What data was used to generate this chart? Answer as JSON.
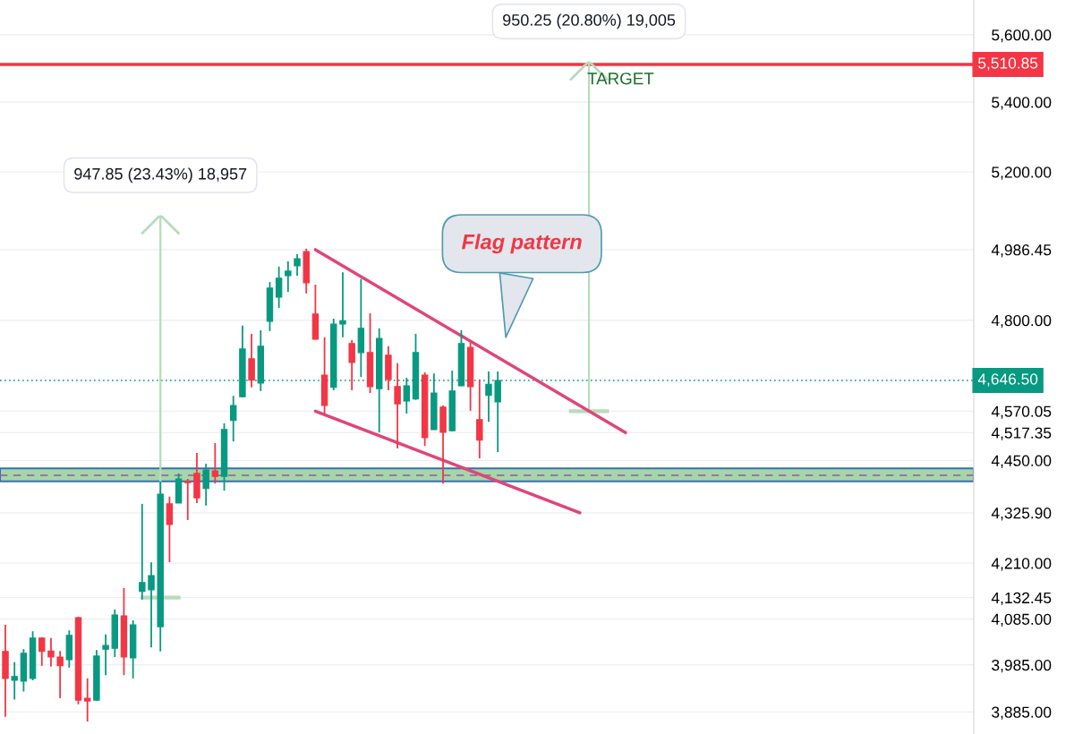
{
  "chart_data": {
    "type": "candlestick",
    "categories": [
      null,
      null,
      null,
      null,
      null,
      null,
      null,
      null,
      null,
      null,
      null,
      null,
      null,
      null,
      null,
      null,
      null,
      null,
      null,
      null,
      null,
      null,
      null,
      null,
      null,
      null,
      null,
      null,
      null,
      null,
      null,
      null,
      null,
      null,
      null,
      null,
      null,
      null,
      null,
      null,
      null,
      null,
      null,
      null,
      null,
      null,
      null,
      null,
      null,
      null,
      null,
      null,
      null,
      null,
      null,
      null,
      null,
      null,
      null,
      null,
      null,
      null,
      null,
      null,
      null,
      null,
      null,
      null,
      null,
      null,
      null,
      null,
      null,
      null,
      null,
      null,
      null,
      null,
      null,
      null,
      null,
      null,
      null,
      null,
      null,
      null,
      null,
      null,
      null,
      null,
      null,
      null,
      null,
      null,
      null,
      null,
      null,
      null,
      null,
      null,
      null,
      null,
      null,
      null,
      null,
      null,
      null
    ],
    "ohlc": [
      [
        4014,
        4072,
        3875,
        3956
      ],
      [
        3952,
        3991,
        3911,
        3960
      ],
      [
        3950,
        4019,
        3928,
        4010
      ],
      [
        3956,
        4058,
        3952,
        4043
      ],
      [
        4043,
        4045,
        3983,
        4014
      ],
      [
        4015,
        4043,
        3981,
        4002
      ],
      [
        4002,
        4015,
        3914,
        3983
      ],
      [
        3996,
        4060,
        3979,
        4049
      ],
      [
        4088,
        4090,
        3901,
        3910
      ],
      [
        3914,
        3956,
        3865,
        3908
      ],
      [
        3910,
        4017,
        3908,
        4004
      ],
      [
        4019,
        4051,
        3963,
        4027
      ],
      [
        4021,
        4106,
        4002,
        4094
      ],
      [
        4092,
        4154,
        3963,
        4002
      ],
      [
        4000,
        4082,
        3956,
        4072
      ],
      [
        4146,
        4347,
        4128,
        4166
      ],
      [
        4150,
        4212,
        4023,
        4182
      ],
      [
        4068,
        4400,
        4014,
        4370
      ],
      [
        4347,
        4364,
        4212,
        4299
      ],
      [
        4349,
        4419,
        4349,
        4406
      ],
      [
        4400,
        4406,
        4309,
        4397
      ],
      [
        4419,
        4468,
        4349,
        4361
      ],
      [
        4383,
        4442,
        4343,
        4427
      ],
      [
        4425,
        4492,
        4395,
        4412
      ],
      [
        4412,
        4540,
        4378,
        4525
      ],
      [
        4547,
        4608,
        4496,
        4584
      ],
      [
        4606,
        4786,
        4604,
        4726
      ],
      [
        4701,
        4765,
        4629,
        4647
      ],
      [
        4640,
        4774,
        4620,
        4733
      ],
      [
        4797,
        4900,
        4772,
        4884
      ],
      [
        4860,
        4941,
        4832,
        4910
      ],
      [
        4917,
        4955,
        4874,
        4929
      ],
      [
        4943,
        4974,
        4917,
        4962
      ],
      [
        4981,
        4989,
        4870,
        4898
      ],
      [
        4816,
        4893,
        4750,
        4751
      ],
      [
        4660,
        4756,
        4564,
        4584
      ],
      [
        4629,
        4804,
        4622,
        4790
      ],
      [
        4790,
        4926,
        4756,
        4799
      ],
      [
        4740,
        4749,
        4622,
        4692
      ],
      [
        4717,
        4908,
        4655,
        4779
      ],
      [
        4717,
        4818,
        4615,
        4631
      ],
      [
        4626,
        4779,
        4518,
        4753
      ],
      [
        4710,
        4733,
        4622,
        4649
      ],
      [
        4631,
        4690,
        4479,
        4588
      ],
      [
        4595,
        4653,
        4564,
        4633
      ],
      [
        4600,
        4765,
        4598,
        4717
      ],
      [
        4660,
        4667,
        4485,
        4505
      ],
      [
        4525,
        4664,
        4524,
        4615
      ],
      [
        4580,
        4584,
        4395,
        4518
      ],
      [
        4522,
        4671,
        4521,
        4620
      ],
      [
        4633,
        4774,
        4632,
        4740
      ],
      [
        4730,
        4742,
        4571,
        4631
      ],
      [
        4549,
        4649,
        4455,
        4499
      ],
      [
        4609,
        4669,
        4544,
        4637
      ],
      [
        4593,
        4669,
        4470,
        4646.5
      ],
      null,
      null,
      null,
      null,
      null,
      null,
      null,
      null,
      null,
      null,
      null,
      null,
      null,
      null,
      null,
      null,
      null,
      null,
      null,
      null,
      null,
      null,
      null,
      null,
      null,
      null,
      null,
      null,
      null,
      null,
      null,
      null,
      null,
      null,
      null,
      null,
      null,
      null,
      null,
      null,
      null,
      null,
      null,
      null,
      null,
      null,
      null,
      null,
      null,
      null,
      null,
      null
    ],
    "colors": [
      "#f23645",
      "#089981",
      "#089981",
      "#089981",
      "#f23645",
      "#f23645",
      "#f23645",
      "#089981",
      "#f23645",
      "#f23645",
      "#089981",
      "#089981",
      "#089981",
      "#f23645",
      "#089981",
      "#089981",
      "#089981",
      "#089981",
      "#f23645",
      "#089981",
      "#f23645",
      "#f23645",
      "#089981",
      "#f23645",
      "#089981",
      "#089981",
      "#089981",
      "#f23645",
      "#089981",
      "#089981",
      "#089981",
      "#089981",
      "#089981",
      "#f23645",
      "#f23645",
      "#f23645",
      "#089981",
      "#089981",
      "#f23645",
      "#089981",
      "#f23645",
      "#089981",
      "#f23645",
      "#f23645",
      "#089981",
      "#089981",
      "#f23645",
      "#089981",
      "#f23645",
      "#089981",
      "#089981",
      "#f23645",
      "#f23645",
      "#089981",
      "#089981",
      null,
      null,
      null,
      null,
      null,
      null,
      null,
      null,
      null,
      null,
      null,
      null,
      null,
      null,
      null,
      null,
      null,
      null,
      null,
      null,
      null,
      null,
      null,
      null,
      null,
      null,
      null,
      null,
      null,
      null,
      null,
      null,
      null,
      null,
      null,
      null,
      null,
      null,
      null,
      null,
      null,
      null,
      null,
      null,
      null,
      null,
      null,
      null,
      null,
      null,
      null,
      null
    ],
    "series": [
      {
        "type": "line",
        "color": "#e0457b",
        "values": [
          null,
          null,
          null,
          null,
          null,
          null,
          null,
          null,
          null,
          null,
          null,
          null,
          null,
          null,
          null,
          null,
          null,
          null,
          null,
          null,
          null,
          null,
          null,
          null,
          null,
          null,
          null,
          null,
          null,
          null,
          null,
          null,
          null,
          null,
          4986.45,
          null,
          null,
          null,
          null,
          null,
          null,
          null,
          null,
          null,
          null,
          null,
          null,
          null,
          null,
          null,
          null,
          null,
          null,
          null,
          null,
          null,
          null,
          null,
          null,
          null,
          null,
          null,
          null,
          null,
          null,
          null,
          null,
          null,
          4517.35,
          null,
          null,
          null,
          null,
          null,
          null,
          null,
          null,
          null,
          null,
          null,
          null,
          null,
          null,
          null,
          null,
          null,
          null,
          null,
          null,
          null,
          null,
          null,
          null,
          null,
          null,
          null,
          null,
          null,
          null,
          null,
          null,
          null,
          null,
          null,
          null,
          null,
          null
        ]
      },
      {
        "type": "line",
        "color": "#e0457b",
        "values": [
          null,
          null,
          null,
          null,
          null,
          null,
          null,
          null,
          null,
          null,
          null,
          null,
          null,
          null,
          null,
          null,
          null,
          null,
          null,
          null,
          null,
          null,
          null,
          null,
          null,
          null,
          null,
          null,
          null,
          null,
          null,
          null,
          null,
          null,
          4570.05,
          null,
          null,
          null,
          null,
          null,
          null,
          null,
          null,
          null,
          null,
          null,
          null,
          null,
          null,
          null,
          null,
          null,
          null,
          null,
          null,
          null,
          null,
          null,
          null,
          null,
          null,
          null,
          null,
          4325.9,
          null,
          null,
          null,
          null,
          null,
          null,
          null,
          null,
          null,
          null,
          null,
          null,
          null,
          null,
          null,
          null,
          null,
          null,
          null,
          null,
          null,
          null,
          null,
          null,
          null,
          null,
          null,
          null,
          null,
          null,
          null,
          null,
          null,
          null,
          null,
          null,
          null,
          null,
          null,
          null,
          null,
          null,
          null
        ]
      },
      {
        "type": "bar",
        "name": "947.85 (23.43%) 18,957",
        "color": "#b5dcbc",
        "values": [
          null,
          null,
          null,
          null,
          null,
          null,
          null,
          null,
          null,
          null,
          null,
          null,
          null,
          null,
          null,
          null,
          null,
          947.85,
          null,
          null,
          null,
          null,
          null,
          null,
          null,
          null,
          null,
          null,
          null,
          null,
          null,
          null,
          null,
          null,
          null,
          null,
          null,
          null,
          null,
          null,
          null,
          null,
          null,
          null,
          null,
          null,
          null,
          null,
          null,
          null,
          null,
          null,
          null,
          null,
          null,
          null,
          null,
          null,
          null,
          null,
          null,
          null,
          null,
          null,
          null,
          null,
          null,
          null,
          null,
          null,
          null,
          null,
          null,
          null,
          null,
          null,
          null,
          null,
          null,
          null,
          null,
          null,
          null,
          null,
          null,
          null,
          null,
          null,
          null,
          null,
          null,
          null,
          null,
          null,
          null,
          null,
          null,
          null,
          null,
          null,
          null,
          null,
          null,
          null,
          null,
          null,
          null
        ],
        "base": [
          null,
          null,
          null,
          null,
          null,
          null,
          null,
          null,
          null,
          null,
          null,
          null,
          null,
          null,
          null,
          null,
          null,
          4132.45,
          null,
          null,
          null,
          null,
          null,
          null,
          null,
          null,
          null,
          null,
          null,
          null,
          null,
          null,
          null,
          null,
          null,
          null,
          null,
          null,
          null,
          null,
          null,
          null,
          null,
          null,
          null,
          null,
          null,
          null,
          null,
          null,
          null,
          null,
          null,
          null,
          null,
          null,
          null,
          null,
          null,
          null,
          null,
          null,
          null,
          null,
          null,
          null,
          null,
          null,
          null,
          null,
          null,
          null,
          null,
          null,
          null,
          null,
          null,
          null,
          null,
          null,
          null,
          null,
          null,
          null,
          null,
          null,
          null,
          null,
          null,
          null,
          null,
          null,
          null,
          null,
          null,
          null,
          null,
          null,
          null,
          null,
          null,
          null,
          null,
          null,
          null,
          null,
          null
        ]
      },
      {
        "type": "bar",
        "name": "950.25 (20.80%) 19,005",
        "color": "#b5dcbc",
        "values": [
          null,
          null,
          null,
          null,
          null,
          null,
          null,
          null,
          null,
          null,
          null,
          null,
          null,
          null,
          null,
          null,
          null,
          null,
          null,
          null,
          null,
          null,
          null,
          null,
          null,
          null,
          null,
          null,
          null,
          null,
          null,
          null,
          null,
          null,
          null,
          null,
          null,
          null,
          null,
          null,
          null,
          null,
          null,
          null,
          null,
          null,
          null,
          null,
          null,
          null,
          null,
          null,
          null,
          null,
          null,
          null,
          null,
          null,
          null,
          null,
          null,
          null,
          null,
          null,
          950.25,
          null,
          null,
          null,
          null,
          null,
          null,
          null,
          null,
          null,
          null,
          null,
          null,
          null,
          null,
          null,
          null,
          null,
          null,
          null,
          null,
          null,
          null,
          null,
          null,
          null,
          null,
          null,
          null,
          null,
          null,
          null,
          null,
          null,
          null,
          null,
          null,
          null,
          null,
          null,
          null,
          null,
          null
        ],
        "base": [
          null,
          null,
          null,
          null,
          null,
          null,
          null,
          null,
          null,
          null,
          null,
          null,
          null,
          null,
          null,
          null,
          null,
          null,
          null,
          null,
          null,
          null,
          null,
          null,
          null,
          null,
          null,
          null,
          null,
          null,
          null,
          null,
          null,
          null,
          null,
          null,
          null,
          null,
          null,
          null,
          null,
          null,
          null,
          null,
          null,
          null,
          null,
          null,
          null,
          null,
          null,
          null,
          null,
          null,
          null,
          null,
          null,
          null,
          null,
          null,
          null,
          null,
          null,
          null,
          4570.05,
          null,
          null,
          null,
          null,
          null,
          null,
          null,
          null,
          null,
          null,
          null,
          null,
          null,
          null,
          null,
          null,
          null,
          null,
          null,
          null,
          null,
          null,
          null,
          null,
          null,
          null,
          null,
          null,
          null,
          null,
          null,
          null,
          null,
          null,
          null,
          null,
          null,
          null,
          null,
          null,
          null,
          null
        ]
      }
    ],
    "bands": [
      {
        "axis": "y",
        "from": 4400,
        "to": 4431,
        "color": "#a5d6a7"
      }
    ],
    "ref_lines": [
      {
        "axis": "y",
        "value": 5510.85,
        "label": "5,510.85",
        "color": "#f23645",
        "line_style": "solid"
      },
      {
        "axis": "y",
        "value": 4646.5,
        "label": "4,646.50",
        "color": "#089981",
        "line_style": "dotted"
      },
      {
        "axis": "y",
        "value": 4414.5,
        "label": null,
        "color": "#9c4fb5",
        "line_style": "dashed"
      }
    ],
    "annotations": [
      "TARGET",
      "Flag pattern"
    ],
    "log": true,
    "ylim": [
      3839,
      5706
    ],
    "yticks": [
      {
        "value": 3885,
        "label": "3,885.00"
      },
      {
        "value": 3985,
        "label": "3,985.00"
      },
      {
        "value": 4085,
        "label": "4,085.00"
      },
      {
        "value": 4132.45,
        "label": "4,132.45"
      },
      {
        "value": 4210,
        "label": "4,210.00"
      },
      {
        "value": 4325.9,
        "label": "4,325.90"
      },
      {
        "value": 4450,
        "label": "4,450.00"
      },
      {
        "value": 4517.35,
        "label": "4,517.35"
      },
      {
        "value": 4570.05,
        "label": "4,570.05"
      },
      {
        "value": 4800,
        "label": "4,800.00"
      },
      {
        "value": 4986.45,
        "label": "4,986.45"
      },
      {
        "value": 5200,
        "label": "5,200.00"
      },
      {
        "value": 5400,
        "label": "5,400.00"
      },
      {
        "value": 5600,
        "label": "5,600.00"
      }
    ],
    "tick_labels": "y",
    "grid": "y",
    "legend": false
  }
}
